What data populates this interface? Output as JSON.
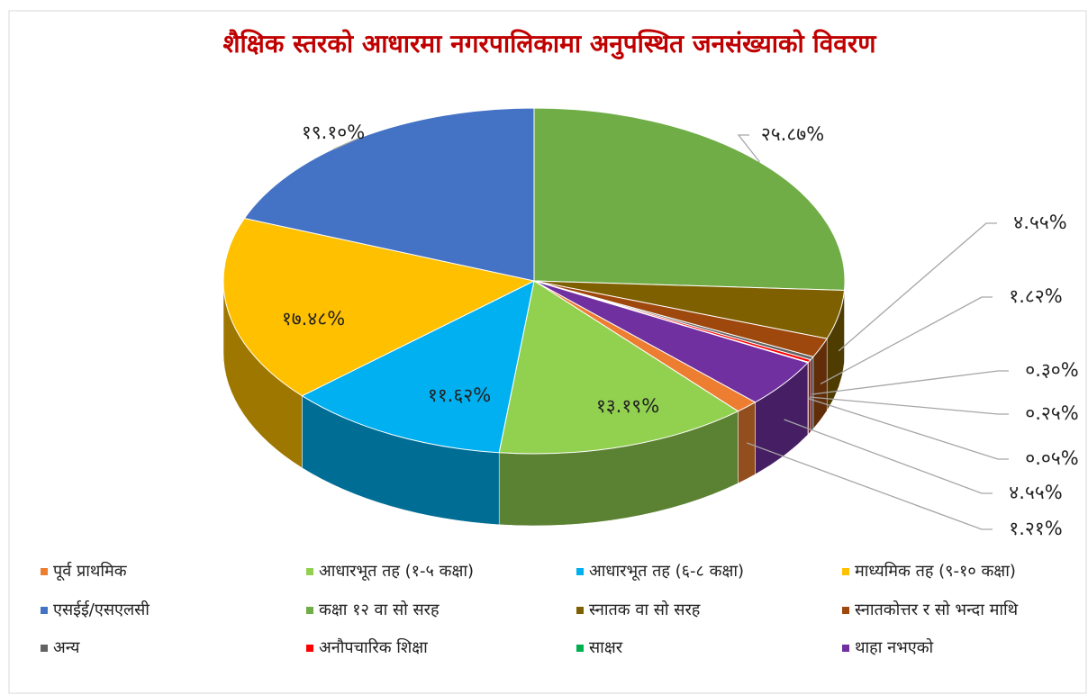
{
  "chart_data": {
    "type": "pie3d",
    "title": "शैक्षिक स्तरको आधारमा नगरपालिकामा अनुपस्थित जनसंख्याको विवरण",
    "categories": [
      "पूर्व प्राथमिक",
      "आधारभूत तह (१-५ कक्षा)",
      "आधारभूत तह (६-८ कक्षा)",
      "माध्यमिक तह (९-१० कक्षा)",
      "एसईई/एसएलसी",
      "कक्षा १२ वा सो सरह",
      "स्नातक वा सो सरह",
      "स्नातकोत्तर र सो भन्दा माथि",
      "अन्य",
      "अनौपचारिक शिक्षा",
      "साक्षर",
      "थाहा नभएको"
    ],
    "values": [
      1.21,
      13.19,
      11.62,
      17.48,
      19.1,
      25.87,
      4.55,
      1.82,
      0.3,
      0.25,
      0.05,
      4.55
    ],
    "value_labels": [
      "१.२१%",
      "१३.१९%",
      "११.६२%",
      "१७.४८%",
      "१९.१०%",
      "२५.८७%",
      "४.५५%",
      "१.८२%",
      "०.३०%",
      "०.२५%",
      "०.०५%",
      "४.५५%"
    ],
    "colors": [
      "#ed7d31",
      "#92d050",
      "#00b0f0",
      "#ffc000",
      "#4472c4",
      "#70ad47",
      "#7f6000",
      "#9e480e",
      "#636363",
      "#ff0000",
      "#00b050",
      "#7030a0"
    ],
    "legend": "bottom"
  }
}
